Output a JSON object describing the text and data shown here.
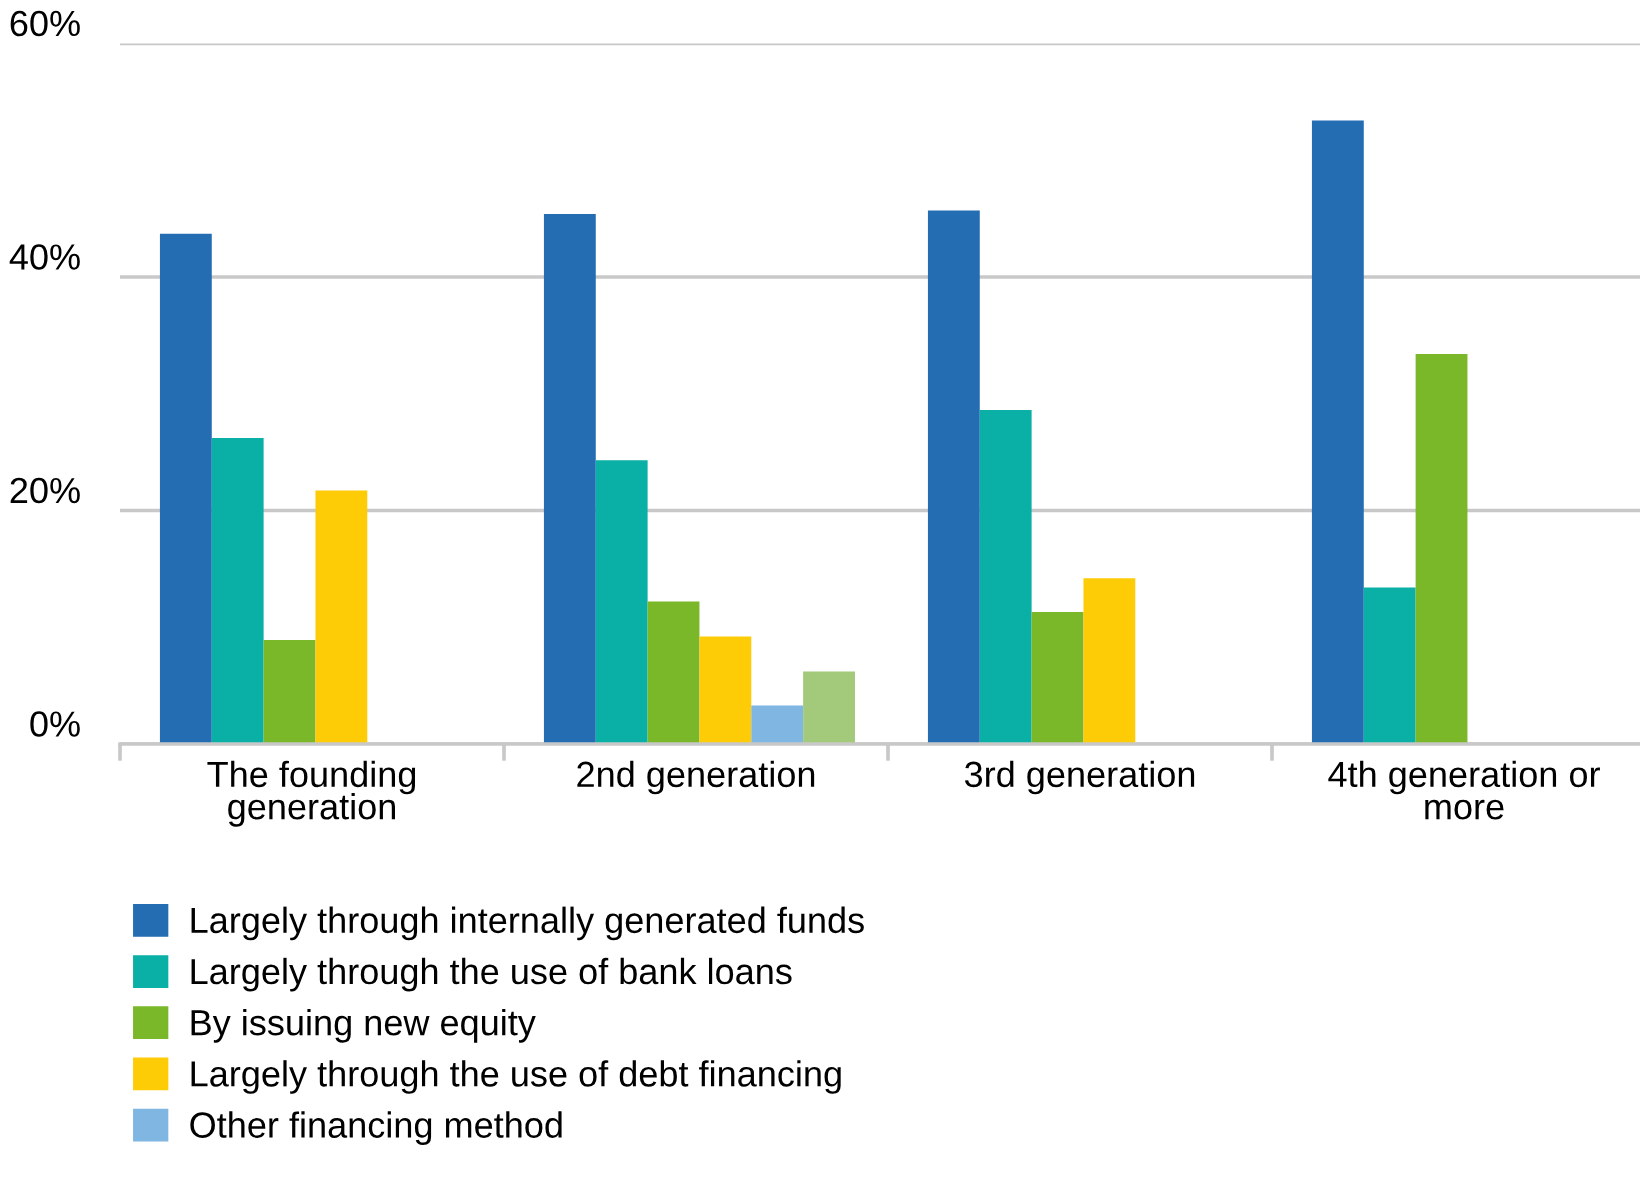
{
  "chart_data": {
    "type": "bar",
    "categories": [
      "The founding\ngeneration",
      "2nd generation",
      "3rd generation",
      "4th generation or\nmore"
    ],
    "series": [
      {
        "name": "Largely through internally generated funds",
        "color": "#246db3",
        "values": [
          43.7,
          45.4,
          45.7,
          53.4
        ]
      },
      {
        "name": "Largely through the use of bank loans",
        "color": "#0aafa6",
        "values": [
          26.2,
          24.3,
          28.6,
          13.4
        ]
      },
      {
        "name": "By issuing new equity",
        "color": "#7ab829",
        "values": [
          8.9,
          12.2,
          11.3,
          33.4
        ]
      },
      {
        "name": "Largely through the use of debt financing",
        "color": "#fecc07",
        "values": [
          21.7,
          9.2,
          14.2,
          null
        ]
      },
      {
        "name": "Other financing method",
        "color": "#80b6e2",
        "values": [
          null,
          3.3,
          null,
          null
        ]
      },
      {
        "color": "#a2ca7a",
        "values": [
          null,
          6.2,
          null,
          null
        ]
      }
    ],
    "ylim": [
      0,
      60
    ],
    "yticks": [
      {
        "value": 0,
        "label": "0%"
      },
      {
        "value": 20,
        "label": "20%"
      },
      {
        "value": 40,
        "label": "40%"
      },
      {
        "value": 60,
        "label": "60%"
      }
    ],
    "grid": "y",
    "legend": "bottom"
  }
}
